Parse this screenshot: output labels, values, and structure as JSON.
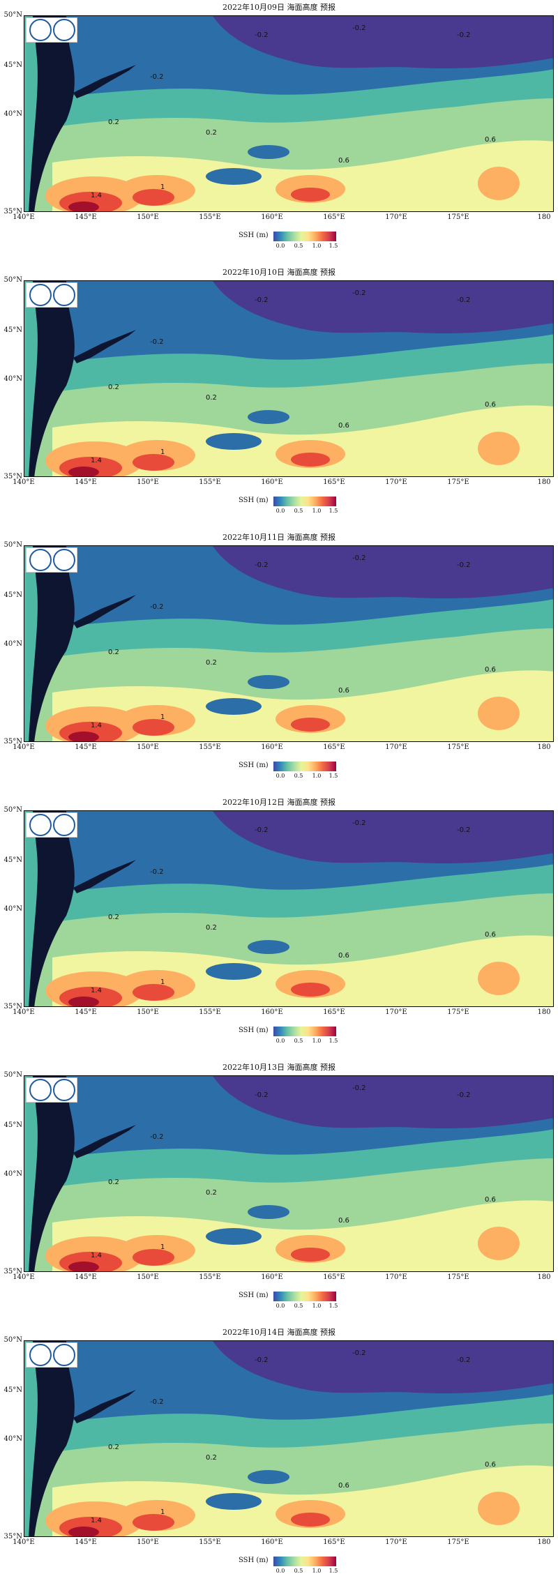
{
  "panels": [
    {
      "title": "2022年10月09日 海面高度 预报"
    },
    {
      "title": "2022年10月10日 海面高度 预报"
    },
    {
      "title": "2022年10月11日 海面高度 预报"
    },
    {
      "title": "2022年10月12日 海面高度 预报"
    },
    {
      "title": "2022年10月13日 海面高度 预报"
    },
    {
      "title": "2022年10月14日 海面高度 预报"
    }
  ],
  "axes": {
    "lat_labels": [
      "50°N",
      "45°N",
      "40°N",
      "35°N"
    ],
    "lon_labels": [
      "140°E",
      "145°E",
      "150°E",
      "155°E",
      "160°E",
      "165°E",
      "170°E",
      "175°E",
      "180"
    ]
  },
  "colorbar": {
    "label": "SSH (m)",
    "ticks": [
      "0.0",
      "0.5",
      "1.0",
      "1.5"
    ]
  },
  "contour_labels": [
    "-0.2",
    "0.2",
    "0.6",
    "1",
    "1.4"
  ],
  "colors": {
    "land": "#0d1530",
    "deep_purple": "#4a3a8f",
    "blue": "#2c6fa8",
    "teal": "#4fb8a5",
    "green": "#9fd69a",
    "yellow": "#f1f5a0",
    "orange": "#fdb061",
    "red": "#e84b3a",
    "dark_red": "#a3102b"
  }
}
